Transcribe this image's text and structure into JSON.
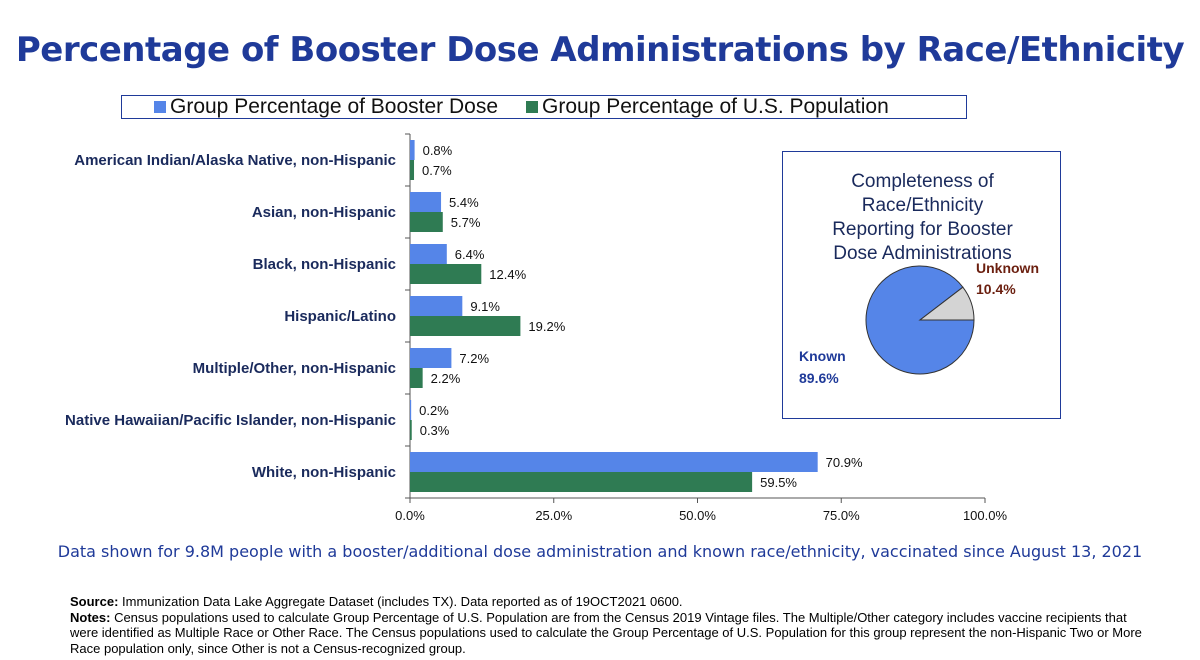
{
  "title": "Percentage of Booster Dose Administrations by Race/Ethnicity",
  "colors": {
    "booster": "#5585e8",
    "population": "#2f7b53",
    "title": "#1f3a99",
    "unknown_slice": "#d4d4d4",
    "unknown_text": "#6b1f0f"
  },
  "chart_data": [
    {
      "type": "bar",
      "orientation": "horizontal",
      "title": "Percentage of Booster Dose Administrations by Race/Ethnicity",
      "categories": [
        "American Indian/Alaska Native, non-Hispanic",
        "Asian, non-Hispanic",
        "Black, non-Hispanic",
        "Hispanic/Latino",
        "Multiple/Other, non-Hispanic",
        "Native Hawaiian/Pacific Islander, non-Hispanic",
        "White, non-Hispanic"
      ],
      "series": [
        {
          "name": "Group Percentage of Booster Dose",
          "values": [
            0.8,
            5.4,
            6.4,
            9.1,
            7.2,
            0.2,
            70.9
          ],
          "labels": [
            "0.8%",
            "5.4%",
            "6.4%",
            "9.1%",
            "7.2%",
            "0.2%",
            "70.9%"
          ]
        },
        {
          "name": "Group Percentage of U.S. Population",
          "values": [
            0.7,
            5.7,
            12.4,
            19.2,
            2.2,
            0.3,
            59.5
          ],
          "labels": [
            "0.7%",
            "5.7%",
            "12.4%",
            "19.2%",
            "2.2%",
            "0.3%",
            "59.5%"
          ]
        }
      ],
      "xlim": [
        0,
        100
      ],
      "xticks": [
        0,
        25,
        50,
        75,
        100
      ],
      "xtick_labels": [
        "0.0%",
        "25.0%",
        "50.0%",
        "75.0%",
        "100.0%"
      ],
      "legend": "top"
    },
    {
      "type": "pie",
      "title_lines": [
        "Completeness of",
        "Race/Ethnicity",
        "Reporting for Booster",
        "Dose Administrations"
      ],
      "slices": [
        {
          "name": "Known",
          "value": 89.6,
          "label": "89.6%"
        },
        {
          "name": "Unknown",
          "value": 10.4,
          "label": "10.4%"
        }
      ]
    }
  ],
  "footnote": "Data shown for 9.8M people with a booster/additional dose administration and known race/ethnicity, vaccinated since August 13, 2021",
  "source": {
    "label": "Source:",
    "text": " Immunization Data Lake Aggregate Dataset (includes TX). Data reported as of 19OCT2021 0600."
  },
  "notes": {
    "label": "Notes:",
    "text": " Census populations used to calculate Group Percentage of U.S. Population are from the Census 2019 Vintage files. The Multiple/Other category includes vaccine recipients that were identified as Multiple Race or Other Race. The Census populations used to calculate the Group Percentage of U.S. Population for this group represent the non-Hispanic Two or More Race population only, since Other is not a Census-recognized group."
  }
}
